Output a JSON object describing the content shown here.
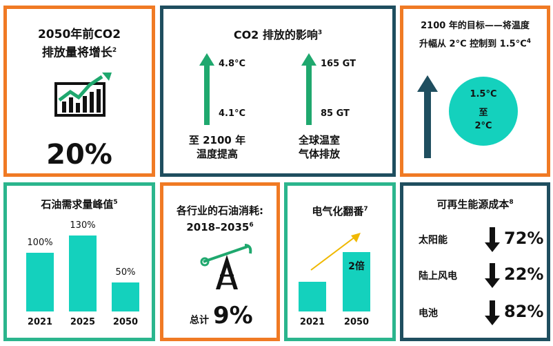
{
  "p1": {
    "title_line1": "2050年前CO2",
    "title_line2": "排放量将增长",
    "note": "2",
    "value": "20%"
  },
  "p2": {
    "title": "CO2 排放的影响",
    "note": "3",
    "temp_high": "4.8°C",
    "temp_low": "4.1°C",
    "temp_label1": "至 2100 年",
    "temp_label2": "温度提高",
    "gas_high": "165 GT",
    "gas_low": "85 GT",
    "gas_label1": "全球温室",
    "gas_label2": "气体排放"
  },
  "p3": {
    "title_line1": "2100 年的目标——将温度",
    "title_line2": "升幅从 2°C 控制到 1.5°C",
    "note": "4",
    "circle_top": "1.5°C",
    "circle_mid": "至",
    "circle_bottom": "2°C"
  },
  "p4": {
    "title": "石油需求量峰值",
    "note": "5"
  },
  "p5": {
    "title_line1": "各行业的石油消耗:",
    "title_line2": "2018–2035",
    "note": "6",
    "total_label": "总计",
    "total_value": "9%"
  },
  "p6": {
    "title": "电气化翻番",
    "note": "7",
    "bar_label": "2倍"
  },
  "p7": {
    "title": "可再生能源成本",
    "note": "8",
    "rows": [
      {
        "label": "太阳能",
        "value": "72%"
      },
      {
        "label": "陆上风电",
        "value": "22%"
      },
      {
        "label": "电池",
        "value": "82%"
      }
    ]
  },
  "chart_data": [
    {
      "type": "bar",
      "title": "石油需求量峰值",
      "categories": [
        "2021",
        "2025",
        "2050"
      ],
      "values": [
        100,
        130,
        50
      ],
      "value_labels": [
        "100%",
        "130%",
        "50%"
      ],
      "ylabel": ""
    },
    {
      "type": "bar",
      "title": "电气化翻番",
      "categories": [
        "2021",
        "2050"
      ],
      "values": [
        1,
        2
      ],
      "value_labels": [
        "",
        "2倍"
      ]
    }
  ],
  "colors": {
    "orange": "#f07a24",
    "navy": "#1f4e5f",
    "teal": "#2bb58d",
    "cyan": "#14d1bd",
    "green": "#1fa86e",
    "gold": "#f0b800"
  }
}
